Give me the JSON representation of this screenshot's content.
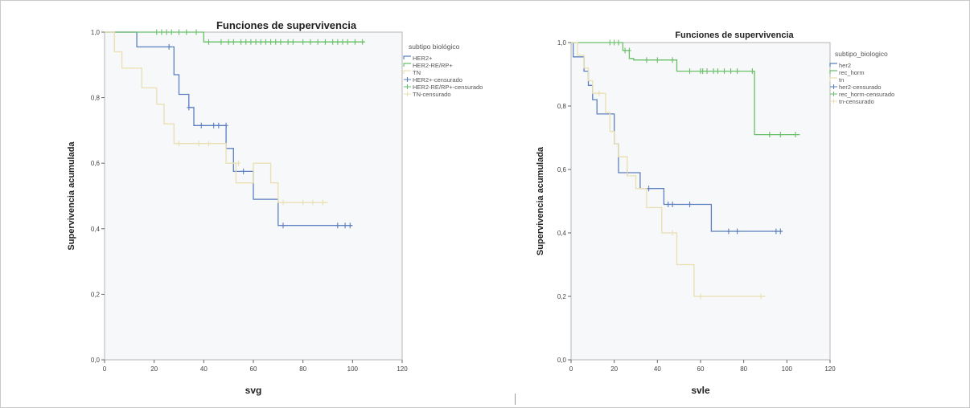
{
  "chart_data": [
    {
      "type": "line",
      "title": "Funciones de supervivencia",
      "xlabel": "svg",
      "ylabel": "Supervivencia acumulada",
      "xlim": [
        0,
        120
      ],
      "ylim": [
        0,
        1
      ],
      "xticks": [
        "0",
        "20",
        "40",
        "60",
        "80",
        "100",
        "120"
      ],
      "yticks": [
        "0,0",
        "0,2",
        "0,4",
        "0,6",
        "0,8",
        "1,0"
      ],
      "legend_title": "subtipo biológico",
      "legend_position": "right",
      "legend": [
        "HER2+",
        "HER2-RE/RP+",
        "TN",
        "HER2+-censurado",
        "HER2-RE/RP+-censurado",
        "TN-censurado"
      ],
      "colors": [
        "#5b7fc0",
        "#6abf69",
        "#e9dfb2"
      ],
      "series": [
        {
          "name": "HER2+",
          "color": "#5b7fc0",
          "steps": [
            [
              0,
              1.0
            ],
            [
              13,
              0.955
            ],
            [
              28,
              0.87
            ],
            [
              30,
              0.81
            ],
            [
              34,
              0.77
            ],
            [
              36,
              0.715
            ],
            [
              49,
              0.645
            ],
            [
              52,
              0.575
            ],
            [
              60,
              0.49
            ],
            [
              70,
              0.41
            ],
            [
              100,
              0.41
            ]
          ],
          "censored": [
            [
              26,
              0.955
            ],
            [
              34,
              0.77
            ],
            [
              39,
              0.715
            ],
            [
              44,
              0.715
            ],
            [
              46,
              0.715
            ],
            [
              49,
              0.715
            ],
            [
              56,
              0.575
            ],
            [
              72,
              0.41
            ],
            [
              94,
              0.41
            ],
            [
              97,
              0.41
            ],
            [
              99,
              0.41
            ]
          ]
        },
        {
          "name": "HER2-RE/RP+",
          "color": "#6abf69",
          "steps": [
            [
              0,
              1.0
            ],
            [
              40,
              0.97
            ],
            [
              105,
              0.97
            ]
          ],
          "censored": [
            [
              21,
              1.0
            ],
            [
              23,
              1.0
            ],
            [
              25,
              1.0
            ],
            [
              27,
              1.0
            ],
            [
              30,
              1.0
            ],
            [
              33,
              1.0
            ],
            [
              37,
              1.0
            ],
            [
              42,
              0.97
            ],
            [
              47,
              0.97
            ],
            [
              50,
              0.97
            ],
            [
              52,
              0.97
            ],
            [
              55,
              0.97
            ],
            [
              57,
              0.97
            ],
            [
              59,
              0.97
            ],
            [
              61,
              0.97
            ],
            [
              63,
              0.97
            ],
            [
              65,
              0.97
            ],
            [
              67,
              0.97
            ],
            [
              69,
              0.97
            ],
            [
              71,
              0.97
            ],
            [
              74,
              0.97
            ],
            [
              76,
              0.97
            ],
            [
              80,
              0.97
            ],
            [
              83,
              0.97
            ],
            [
              86,
              0.97
            ],
            [
              89,
              0.97
            ],
            [
              92,
              0.97
            ],
            [
              94,
              0.97
            ],
            [
              96,
              0.97
            ],
            [
              98,
              0.97
            ],
            [
              101,
              0.97
            ],
            [
              104,
              0.97
            ]
          ]
        },
        {
          "name": "TN",
          "color": "#e9dfb2",
          "steps": [
            [
              0,
              1.0
            ],
            [
              4,
              0.94
            ],
            [
              7,
              0.89
            ],
            [
              15,
              0.83
            ],
            [
              21,
              0.78
            ],
            [
              24,
              0.72
            ],
            [
              28,
              0.66
            ],
            [
              49,
              0.6
            ],
            [
              53,
              0.54
            ],
            [
              60,
              0.6
            ],
            [
              67,
              0.54
            ],
            [
              70,
              0.48
            ],
            [
              90,
              0.48
            ]
          ],
          "censored": [
            [
              30,
              0.66
            ],
            [
              38,
              0.66
            ],
            [
              42,
              0.66
            ],
            [
              54,
              0.6
            ],
            [
              72,
              0.48
            ],
            [
              80,
              0.48
            ],
            [
              84,
              0.48
            ],
            [
              88,
              0.48
            ]
          ]
        }
      ]
    },
    {
      "type": "line",
      "title": "Funciones de supervivencia",
      "xlabel": "svle",
      "ylabel": "Supervivencia acumulada",
      "xlim": [
        0,
        120
      ],
      "ylim": [
        0,
        1
      ],
      "xticks": [
        "0",
        "20",
        "40",
        "60",
        "80",
        "100",
        "120"
      ],
      "yticks": [
        "0,0",
        "0,2",
        "0,4",
        "0,6",
        "0,8",
        "1,0"
      ],
      "legend_title": "subtipo_biologico",
      "legend_position": "right",
      "legend": [
        "her2",
        "rec_horm",
        "tn",
        "her2-censurado",
        "rec_horm-censurado",
        "tn-censurado"
      ],
      "colors": [
        "#5b7fc0",
        "#6abf69",
        "#e9dfb2"
      ],
      "series": [
        {
          "name": "her2",
          "color": "#5b7fc0",
          "steps": [
            [
              0,
              1.0
            ],
            [
              1,
              0.955
            ],
            [
              6,
              0.91
            ],
            [
              8,
              0.865
            ],
            [
              10,
              0.82
            ],
            [
              12,
              0.775
            ],
            [
              20,
              0.68
            ],
            [
              22,
              0.59
            ],
            [
              32,
              0.54
            ],
            [
              43,
              0.49
            ],
            [
              65,
              0.405
            ],
            [
              98,
              0.405
            ]
          ],
          "censored": [
            [
              26,
              0.59
            ],
            [
              36,
              0.54
            ],
            [
              45,
              0.49
            ],
            [
              47,
              0.49
            ],
            [
              55,
              0.49
            ],
            [
              73,
              0.405
            ],
            [
              77,
              0.405
            ],
            [
              95,
              0.405
            ],
            [
              97,
              0.405
            ]
          ]
        },
        {
          "name": "rec_horm",
          "color": "#6abf69",
          "steps": [
            [
              0,
              1.0
            ],
            [
              24,
              0.975
            ],
            [
              27,
              0.95
            ],
            [
              29,
              0.945
            ],
            [
              49,
              0.91
            ],
            [
              85,
              0.71
            ],
            [
              106,
              0.71
            ]
          ],
          "censored": [
            [
              18,
              1.0
            ],
            [
              20,
              1.0
            ],
            [
              22,
              1.0
            ],
            [
              25,
              0.975
            ],
            [
              27,
              0.975
            ],
            [
              35,
              0.945
            ],
            [
              40,
              0.945
            ],
            [
              47,
              0.945
            ],
            [
              55,
              0.91
            ],
            [
              60,
              0.91
            ],
            [
              61,
              0.91
            ],
            [
              63,
              0.91
            ],
            [
              66,
              0.91
            ],
            [
              68,
              0.91
            ],
            [
              71,
              0.91
            ],
            [
              74,
              0.91
            ],
            [
              77,
              0.91
            ],
            [
              84,
              0.91
            ],
            [
              92,
              0.71
            ],
            [
              97,
              0.71
            ],
            [
              104,
              0.71
            ]
          ]
        },
        {
          "name": "tn",
          "color": "#e9dfb2",
          "steps": [
            [
              0,
              1.0
            ],
            [
              3,
              0.96
            ],
            [
              6,
              0.92
            ],
            [
              8,
              0.88
            ],
            [
              10,
              0.84
            ],
            [
              16,
              0.78
            ],
            [
              18,
              0.72
            ],
            [
              20,
              0.68
            ],
            [
              22,
              0.64
            ],
            [
              26,
              0.58
            ],
            [
              30,
              0.54
            ],
            [
              35,
              0.48
            ],
            [
              42,
              0.4
            ],
            [
              49,
              0.3
            ],
            [
              57,
              0.2
            ],
            [
              90,
              0.2
            ]
          ],
          "censored": [
            [
              13,
              0.84
            ],
            [
              47,
              0.4
            ],
            [
              60,
              0.2
            ],
            [
              88,
              0.2
            ]
          ]
        }
      ]
    }
  ]
}
